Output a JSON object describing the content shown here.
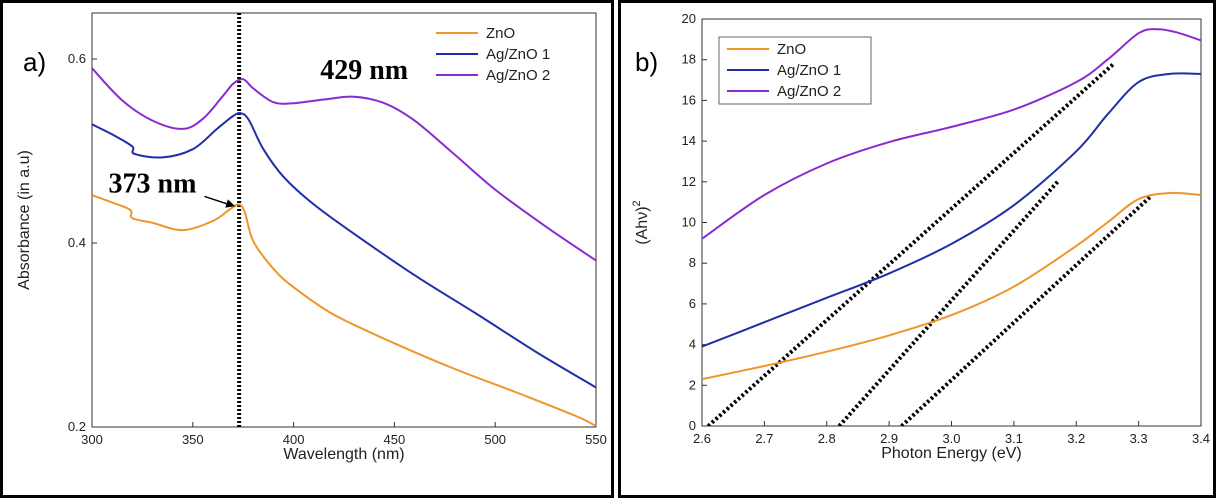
{
  "chart_data": [
    {
      "type": "line",
      "panel_label": "a)",
      "xlabel": "Wavelength (nm)",
      "ylabel": "Absorbance (in a.u)",
      "xlim": [
        300,
        550
      ],
      "ylim": [
        0.2,
        0.65
      ],
      "xticks": [
        300,
        350,
        400,
        450,
        500,
        550
      ],
      "yticks": [
        0.2,
        0.4,
        0.6
      ],
      "xtick_labels": [
        "300",
        "350",
        "400",
        "450",
        "500",
        "550"
      ],
      "ytick_labels": [
        "0.2",
        "0.4",
        "0.6"
      ],
      "legend_position": "top-right",
      "grid": false,
      "series": [
        {
          "name": "ZnO",
          "color": "#f0952a",
          "x": [
            300,
            310,
            319,
            320,
            330,
            345,
            360,
            368,
            373,
            376,
            380,
            390,
            400,
            420,
            450,
            480,
            510,
            540,
            550
          ],
          "y": [
            0.452,
            0.444,
            0.436,
            0.427,
            0.422,
            0.414,
            0.424,
            0.436,
            0.442,
            0.432,
            0.402,
            0.372,
            0.352,
            0.322,
            0.291,
            0.263,
            0.238,
            0.212,
            0.201
          ]
        },
        {
          "name": "Ag/ZnO 1",
          "color": "#1f2fa8",
          "x": [
            300,
            310,
            320,
            321,
            335,
            350,
            362,
            370,
            374,
            378,
            385,
            395,
            410,
            430,
            460,
            490,
            520,
            550
          ],
          "y": [
            0.529,
            0.518,
            0.505,
            0.497,
            0.493,
            0.502,
            0.524,
            0.538,
            0.541,
            0.533,
            0.502,
            0.472,
            0.442,
            0.41,
            0.365,
            0.324,
            0.282,
            0.243
          ]
        },
        {
          "name": "Ag/ZnO 2",
          "color": "#8a2bd2",
          "x": [
            300,
            315,
            330,
            345,
            355,
            365,
            370,
            375,
            380,
            390,
            400,
            415,
            430,
            445,
            460,
            480,
            500,
            525,
            550
          ],
          "y": [
            0.59,
            0.555,
            0.533,
            0.524,
            0.535,
            0.56,
            0.573,
            0.578,
            0.568,
            0.553,
            0.552,
            0.556,
            0.559,
            0.552,
            0.533,
            0.496,
            0.458,
            0.418,
            0.381
          ]
        }
      ],
      "reference_line": {
        "x": 373
      },
      "annotations": [
        {
          "text": "373 nm",
          "x": 330,
          "y": 0.455,
          "arrow_to": {
            "x": 371,
            "y": 0.44
          }
        },
        {
          "text": "429 nm",
          "x": 435,
          "y": 0.578
        }
      ]
    },
    {
      "type": "line",
      "panel_label": "b)",
      "xlabel": "Photon Energy (eV)",
      "ylabel": "(Ahν)",
      "ylabel_superscript": "2",
      "xlim": [
        2.6,
        3.4
      ],
      "ylim": [
        0,
        20
      ],
      "xticks": [
        2.6,
        2.7,
        2.8,
        2.9,
        3.0,
        3.1,
        3.2,
        3.3,
        3.4
      ],
      "yticks": [
        0,
        2,
        4,
        6,
        8,
        10,
        12,
        14,
        16,
        18,
        20
      ],
      "xtick_labels": [
        "2.6",
        "2.7",
        "2.8",
        "2.9",
        "3.0",
        "3.1",
        "3.2",
        "3.3",
        "3.4"
      ],
      "ytick_labels": [
        "0",
        "2",
        "4",
        "6",
        "8",
        "10",
        "12",
        "14",
        "16",
        "18",
        "20"
      ],
      "legend_position": "top-left",
      "grid": false,
      "series": [
        {
          "name": "ZnO",
          "color": "#f0952a",
          "x": [
            2.6,
            2.7,
            2.8,
            2.9,
            3.0,
            3.1,
            3.2,
            3.25,
            3.3,
            3.35,
            3.4
          ],
          "y": [
            2.3,
            2.95,
            3.65,
            4.45,
            5.45,
            6.85,
            8.85,
            10.0,
            11.15,
            11.45,
            11.35
          ]
        },
        {
          "name": "Ag/ZnO 1",
          "color": "#1f2fa8",
          "x": [
            2.6,
            2.7,
            2.8,
            2.9,
            3.0,
            3.1,
            3.2,
            3.25,
            3.3,
            3.35,
            3.4
          ],
          "y": [
            3.9,
            5.1,
            6.3,
            7.5,
            8.95,
            10.85,
            13.5,
            15.3,
            16.9,
            17.3,
            17.3
          ]
        },
        {
          "name": "Ag/ZnO 2",
          "color": "#8a2bd2",
          "x": [
            2.6,
            2.7,
            2.8,
            2.9,
            3.0,
            3.1,
            3.2,
            3.25,
            3.3,
            3.33,
            3.36,
            3.4
          ],
          "y": [
            9.2,
            11.35,
            12.9,
            13.95,
            14.7,
            15.55,
            16.9,
            18.0,
            19.3,
            19.5,
            19.35,
            18.95
          ]
        }
      ],
      "fit_lines": [
        {
          "x": [
            2.61,
            3.26
          ],
          "y": [
            0,
            17.8
          ]
        },
        {
          "x": [
            2.82,
            3.17
          ],
          "y": [
            0,
            12.0
          ]
        },
        {
          "x": [
            2.92,
            3.32
          ],
          "y": [
            0,
            11.3
          ]
        }
      ]
    }
  ]
}
